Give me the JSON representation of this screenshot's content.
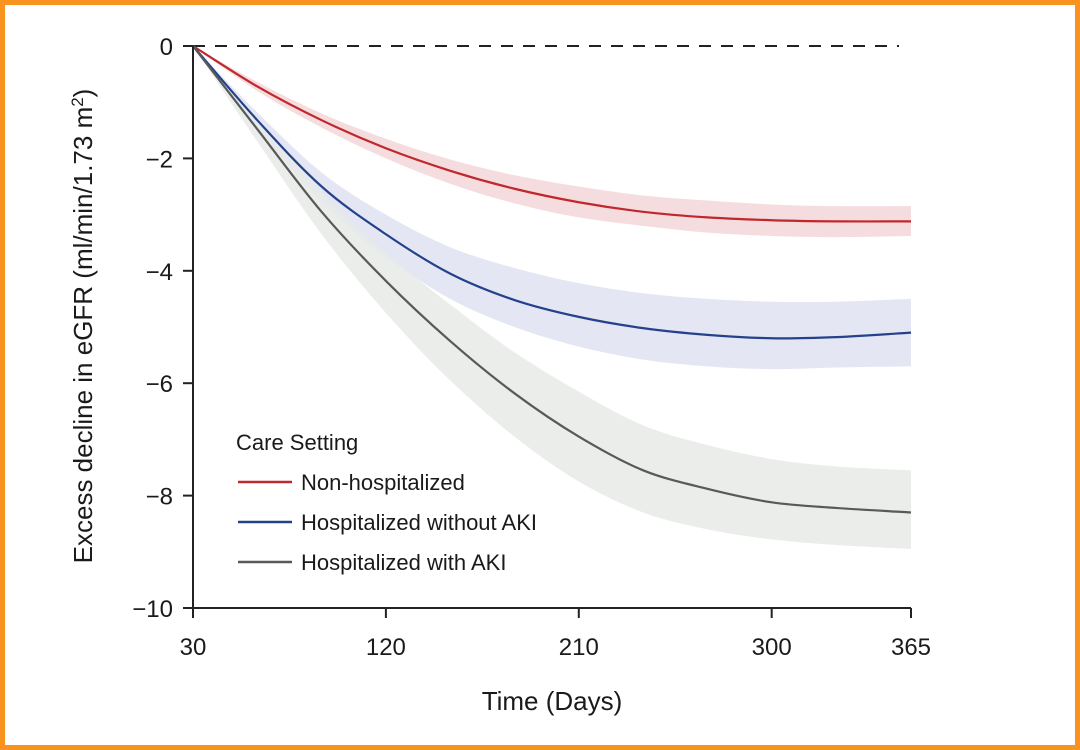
{
  "frame_color": "#f7931e",
  "chart_data": {
    "type": "line",
    "title": "",
    "xlabel": "Time (Days)",
    "ylabel_main": "Excess decline in eGFR (ml/min/1.73 m",
    "ylabel_sup": "2",
    "ylabel_close": ")",
    "xlim": [
      30,
      365
    ],
    "ylim": [
      -10,
      0
    ],
    "xticks": [
      30,
      120,
      210,
      300,
      365
    ],
    "xtick_labels": [
      "30",
      "120",
      "210",
      "300",
      "365"
    ],
    "yticks": [
      0,
      -2,
      -4,
      -6,
      -8,
      -10
    ],
    "ytick_labels": [
      "0",
      "−2",
      "−4",
      "−6",
      "−8",
      "−10"
    ],
    "reference_line": {
      "y": 0,
      "style": "dashed"
    },
    "legend": {
      "title": "Care Setting",
      "placement": "bottom-left"
    },
    "x": [
      30,
      60,
      90,
      120,
      150,
      180,
      210,
      240,
      270,
      300,
      330,
      365
    ],
    "series": [
      {
        "name": "Non-hospitalized",
        "color": "#c0282d",
        "band_color": "#f3d6d8",
        "values": [
          0,
          -0.72,
          -1.32,
          -1.82,
          -2.22,
          -2.54,
          -2.78,
          -2.95,
          -3.05,
          -3.1,
          -3.12,
          -3.12
        ],
        "lower": [
          0,
          -0.8,
          -1.45,
          -2.0,
          -2.45,
          -2.8,
          -3.05,
          -3.2,
          -3.32,
          -3.38,
          -3.4,
          -3.38
        ],
        "upper": [
          0,
          -0.64,
          -1.2,
          -1.65,
          -2.02,
          -2.3,
          -2.5,
          -2.66,
          -2.75,
          -2.82,
          -2.85,
          -2.85
        ]
      },
      {
        "name": "Hospitalized without AKI",
        "color": "#24428c",
        "band_color": "#dfe3f1",
        "values": [
          0,
          -1.32,
          -2.5,
          -3.35,
          -4.05,
          -4.52,
          -4.82,
          -5.02,
          -5.14,
          -5.2,
          -5.18,
          -5.1
        ],
        "lower": [
          0,
          -1.45,
          -2.78,
          -3.75,
          -4.5,
          -5.0,
          -5.35,
          -5.58,
          -5.7,
          -5.75,
          -5.72,
          -5.7
        ],
        "upper": [
          0,
          -1.18,
          -2.25,
          -3.0,
          -3.58,
          -3.95,
          -4.22,
          -4.4,
          -4.5,
          -4.55,
          -4.55,
          -4.5
        ]
      },
      {
        "name": "Hospitalized with AKI",
        "color": "#595959",
        "band_color": "#e8eae8",
        "values": [
          0,
          -1.48,
          -2.95,
          -4.18,
          -5.25,
          -6.18,
          -6.95,
          -7.55,
          -7.88,
          -8.12,
          -8.22,
          -8.3
        ],
        "lower": [
          0,
          -1.7,
          -3.35,
          -4.75,
          -5.95,
          -6.95,
          -7.75,
          -8.3,
          -8.6,
          -8.78,
          -8.88,
          -8.95
        ],
        "upper": [
          0,
          -1.28,
          -2.6,
          -3.68,
          -4.6,
          -5.45,
          -6.15,
          -6.75,
          -7.1,
          -7.35,
          -7.48,
          -7.55
        ]
      }
    ]
  }
}
